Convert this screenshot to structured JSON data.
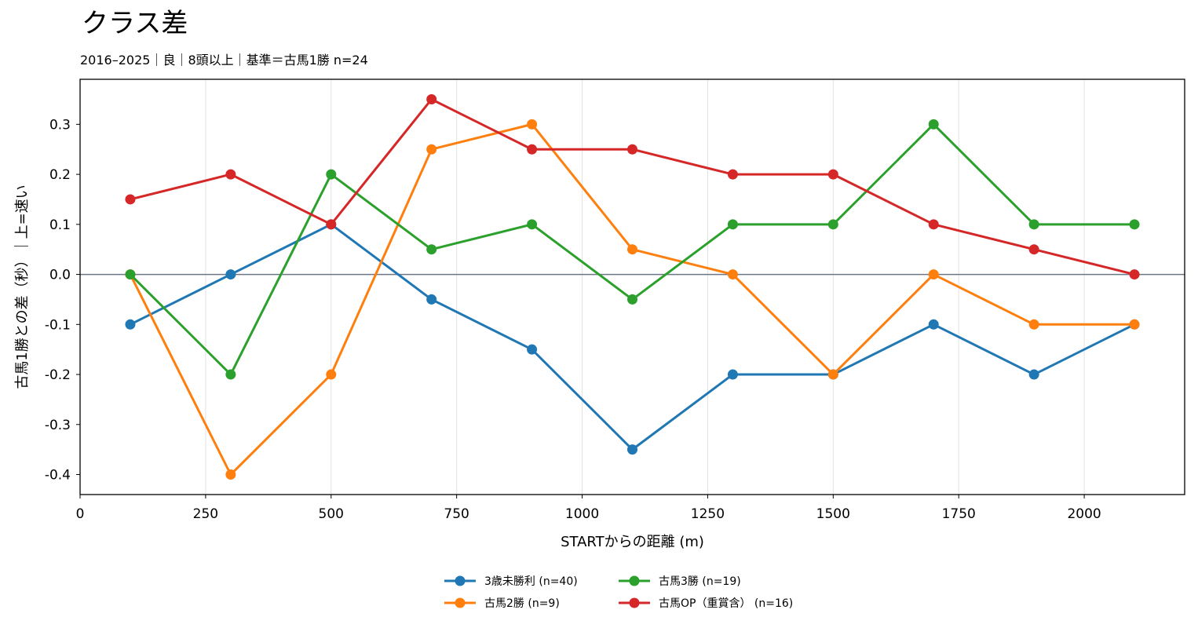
{
  "chart_data": {
    "type": "line",
    "title": "クラス差",
    "subtitle": "2016–2025｜良｜8頭以上｜基準＝古馬1勝 n=24",
    "xlabel": "STARTからの距離 (m)",
    "ylabel": "古馬1勝との差（秒）｜上=速い",
    "x": [
      100,
      300,
      500,
      700,
      900,
      1100,
      1300,
      1500,
      1700,
      1900,
      2100
    ],
    "xlim": [
      0,
      2200
    ],
    "ylim": [
      -0.44,
      0.39
    ],
    "x_ticks": [
      0,
      250,
      500,
      750,
      1000,
      1250,
      1500,
      1750,
      2000
    ],
    "x_tick_labels": [
      "0",
      "250",
      "500",
      "750",
      "1000",
      "1250",
      "1500",
      "1750",
      "2000"
    ],
    "y_ticks": [
      0.3,
      0.2,
      0.1,
      0.0,
      -0.1,
      -0.2,
      -0.3,
      -0.4
    ],
    "y_tick_labels": [
      "0.3",
      "0.2",
      "0.1",
      "0.0",
      "-0.1",
      "-0.2",
      "-0.3",
      "-0.4"
    ],
    "zero_line": 0,
    "grid": "vertical",
    "legend_position": "bottom-center",
    "series": [
      {
        "name": "3歳未勝利 (n=40)",
        "color": "#1f77b4",
        "values": [
          -0.1,
          0.0,
          0.1,
          -0.05,
          -0.15,
          -0.35,
          -0.2,
          -0.2,
          -0.1,
          -0.2,
          -0.1
        ]
      },
      {
        "name": "古馬2勝 (n=9)",
        "color": "#ff7f0e",
        "values": [
          0.0,
          -0.4,
          -0.2,
          0.25,
          0.3,
          0.05,
          0.0,
          -0.2,
          0.0,
          -0.1,
          -0.1
        ]
      },
      {
        "name": "古馬3勝 (n=19)",
        "color": "#2ca02c",
        "values": [
          0.0,
          -0.2,
          0.2,
          0.05,
          0.1,
          -0.05,
          0.1,
          0.1,
          0.3,
          0.1,
          0.1
        ]
      },
      {
        "name": "古馬OP（重賞含） (n=16)",
        "color": "#d62728",
        "values": [
          0.15,
          0.2,
          0.1,
          0.35,
          0.25,
          0.25,
          0.2,
          0.2,
          0.1,
          0.05,
          0.0
        ]
      }
    ]
  }
}
